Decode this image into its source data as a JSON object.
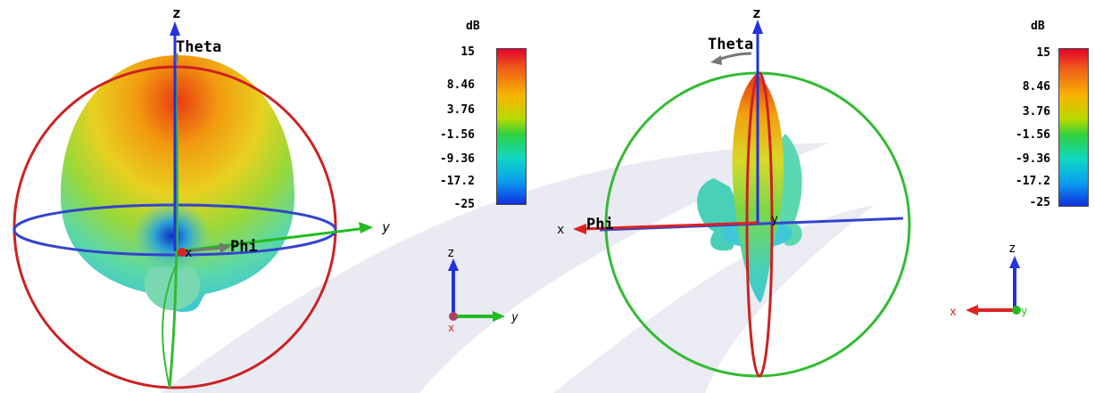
{
  "left_view": {
    "axis_labels": {
      "z": "z",
      "y": "y",
      "x": "x",
      "theta": "Theta",
      "phi": "Phi"
    },
    "mini_axes": {
      "z": "z",
      "y": "y",
      "x": "x"
    }
  },
  "right_view": {
    "axis_labels": {
      "z": "z",
      "y": "y",
      "x": "x",
      "theta": "Theta",
      "phi": "Phi"
    },
    "mini_axes": {
      "z": "z",
      "y": "y",
      "x": "x"
    }
  },
  "scale_left": {
    "unit": "dB",
    "ticks": [
      "15",
      "8.46",
      "3.76",
      "-1.56",
      "-9.36",
      "-17.2",
      "-25"
    ]
  },
  "scale_right": {
    "unit": "dB",
    "ticks": [
      "15",
      "8.46",
      "3.76",
      "-1.56",
      "-9.36",
      "-17.2",
      "-25"
    ]
  },
  "colors": {
    "theta_ring": "#cc2222",
    "phi_ring": "#3344cc",
    "green_ring": "#33bb33",
    "axis_x": "#dd2222",
    "axis_y": "#22bb22",
    "axis_z": "#2233dd"
  }
}
